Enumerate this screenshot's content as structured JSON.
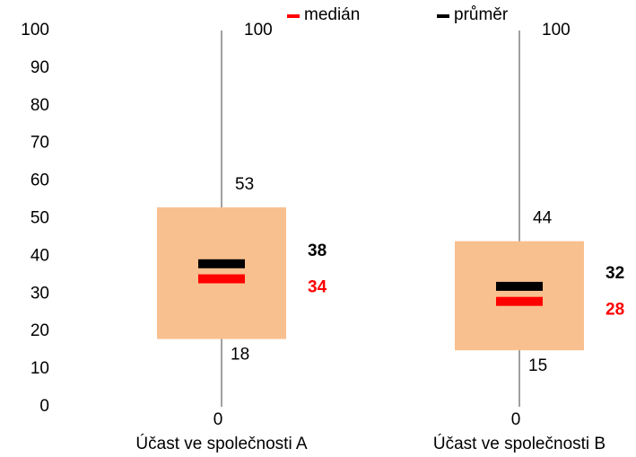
{
  "chart_data": {
    "type": "box",
    "categories": [
      "Účast ve společnosti  A",
      "Účast ve společnosti  B"
    ],
    "min": [
      0,
      0
    ],
    "q1": [
      18,
      15
    ],
    "q3": [
      53,
      44
    ],
    "max": [
      100,
      100
    ],
    "series": [
      {
        "name": "medián",
        "color": "#ff0000",
        "values": [
          34,
          28
        ]
      },
      {
        "name": "průměr",
        "color": "#000000",
        "values": [
          38,
          32
        ]
      }
    ],
    "box_color": "#f9c08f",
    "whisker_color": "#808080",
    "ylim": [
      0,
      100
    ],
    "yticks": [
      0,
      10,
      20,
      30,
      40,
      50,
      60,
      70,
      80,
      90,
      100
    ],
    "legend": "top"
  }
}
